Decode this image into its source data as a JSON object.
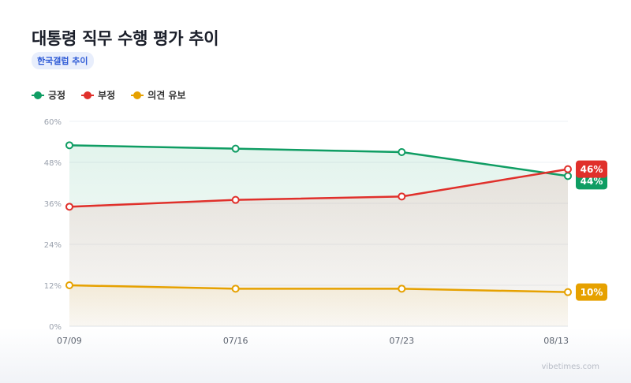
{
  "header": {
    "title": "대통령 직무 수행 평가 추이",
    "subtitle": "한국갤럽 추이"
  },
  "colors": {
    "positive": "#0f9d63",
    "negative": "#e0302b",
    "undecided": "#e6a100"
  },
  "chart_data": {
    "type": "line",
    "categories": [
      "07/09",
      "07/16",
      "07/23",
      "08/13"
    ],
    "series": [
      {
        "name": "긍정",
        "color": "#0f9d63",
        "values": [
          53,
          52,
          51,
          44
        ],
        "end_label": "44%"
      },
      {
        "name": "부정",
        "color": "#e0302b",
        "values": [
          35,
          37,
          38,
          46
        ],
        "end_label": "46%"
      },
      {
        "name": "의견 유보",
        "color": "#e6a100",
        "values": [
          12,
          11,
          11,
          10
        ],
        "end_label": "10%"
      }
    ],
    "y_ticks": [
      "0%",
      "12%",
      "24%",
      "36%",
      "48%",
      "60%"
    ],
    "ylim": [
      0,
      60
    ],
    "grid": true,
    "legend_position": "top-left"
  },
  "watermark": "vibetimes.com"
}
